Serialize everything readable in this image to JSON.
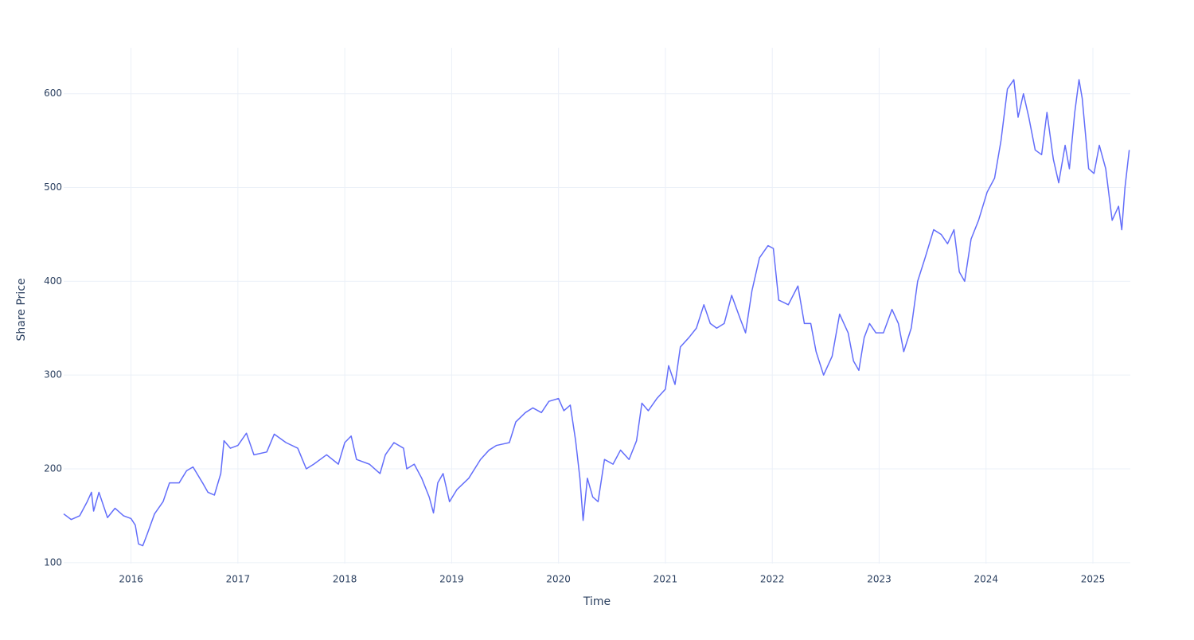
{
  "chart_data": {
    "type": "line",
    "x_label": "Time",
    "y_label": "Share Price",
    "color": "#636efa",
    "grid": true,
    "xlim": [
      2015.37,
      2025.35
    ],
    "ylim": [
      99,
      649
    ],
    "xticks": [
      2016,
      2017,
      2018,
      2019,
      2020,
      2021,
      2022,
      2023,
      2024,
      2025
    ],
    "yticks": [
      100,
      200,
      300,
      400,
      500,
      600
    ],
    "x": [
      2015.37,
      2015.44,
      2015.52,
      2015.59,
      2015.63,
      2015.65,
      2015.7,
      2015.78,
      2015.85,
      2015.93,
      2016.0,
      2016.04,
      2016.07,
      2016.11,
      2016.15,
      2016.22,
      2016.3,
      2016.36,
      2016.45,
      2016.52,
      2016.58,
      2016.67,
      2016.72,
      2016.78,
      2016.84,
      2016.87,
      2016.93,
      2017.0,
      2017.08,
      2017.15,
      2017.27,
      2017.34,
      2017.45,
      2017.56,
      2017.64,
      2017.71,
      2017.83,
      2017.94,
      2018.0,
      2018.06,
      2018.11,
      2018.23,
      2018.33,
      2018.38,
      2018.46,
      2018.55,
      2018.58,
      2018.65,
      2018.72,
      2018.79,
      2018.83,
      2018.87,
      2018.92,
      2018.98,
      2019.05,
      2019.16,
      2019.27,
      2019.35,
      2019.42,
      2019.54,
      2019.6,
      2019.69,
      2019.76,
      2019.84,
      2019.91,
      2020.0,
      2020.05,
      2020.11,
      2020.16,
      2020.2,
      2020.23,
      2020.27,
      2020.32,
      2020.37,
      2020.43,
      2020.51,
      2020.58,
      2020.66,
      2020.73,
      2020.78,
      2020.84,
      2020.92,
      2021.0,
      2021.03,
      2021.09,
      2021.14,
      2021.22,
      2021.29,
      2021.36,
      2021.42,
      2021.48,
      2021.55,
      2021.62,
      2021.7,
      2021.75,
      2021.81,
      2021.88,
      2021.96,
      2022.01,
      2022.06,
      2022.15,
      2022.24,
      2022.3,
      2022.36,
      2022.41,
      2022.48,
      2022.56,
      2022.63,
      2022.71,
      2022.76,
      2022.81,
      2022.86,
      2022.91,
      2022.97,
      2023.04,
      2023.12,
      2023.18,
      2023.23,
      2023.3,
      2023.36,
      2023.43,
      2023.51,
      2023.58,
      2023.64,
      2023.7,
      2023.75,
      2023.8,
      2023.86,
      2023.93,
      2024.01,
      2024.08,
      2024.14,
      2024.2,
      2024.26,
      2024.3,
      2024.35,
      2024.4,
      2024.46,
      2024.52,
      2024.57,
      2024.63,
      2024.68,
      2024.74,
      2024.78,
      2024.83,
      2024.87,
      2024.9,
      2024.96,
      2025.01,
      2025.06,
      2025.12,
      2025.18,
      2025.24,
      2025.27,
      2025.3,
      2025.34
    ],
    "values": [
      152,
      146,
      150,
      165,
      175,
      155,
      175,
      148,
      158,
      150,
      147,
      140,
      120,
      118,
      130,
      152,
      165,
      185,
      185,
      198,
      202,
      185,
      175,
      172,
      195,
      230,
      222,
      225,
      238,
      215,
      218,
      237,
      228,
      222,
      200,
      205,
      215,
      205,
      228,
      235,
      210,
      205,
      195,
      215,
      228,
      222,
      200,
      205,
      190,
      170,
      153,
      185,
      195,
      165,
      178,
      190,
      210,
      220,
      225,
      228,
      250,
      260,
      265,
      260,
      272,
      275,
      262,
      268,
      230,
      190,
      145,
      190,
      170,
      165,
      210,
      205,
      220,
      210,
      230,
      270,
      262,
      275,
      285,
      310,
      290,
      330,
      340,
      350,
      375,
      355,
      350,
      355,
      385,
      360,
      345,
      390,
      425,
      438,
      435,
      380,
      375,
      395,
      355,
      355,
      325,
      300,
      320,
      365,
      345,
      315,
      305,
      340,
      355,
      345,
      345,
      370,
      355,
      325,
      350,
      400,
      425,
      455,
      450,
      440,
      455,
      410,
      400,
      445,
      465,
      495,
      510,
      550,
      605,
      615,
      575,
      600,
      575,
      540,
      535,
      580,
      530,
      505,
      545,
      520,
      580,
      615,
      595,
      520,
      515,
      545,
      520,
      465,
      480,
      455,
      500,
      540
    ]
  }
}
